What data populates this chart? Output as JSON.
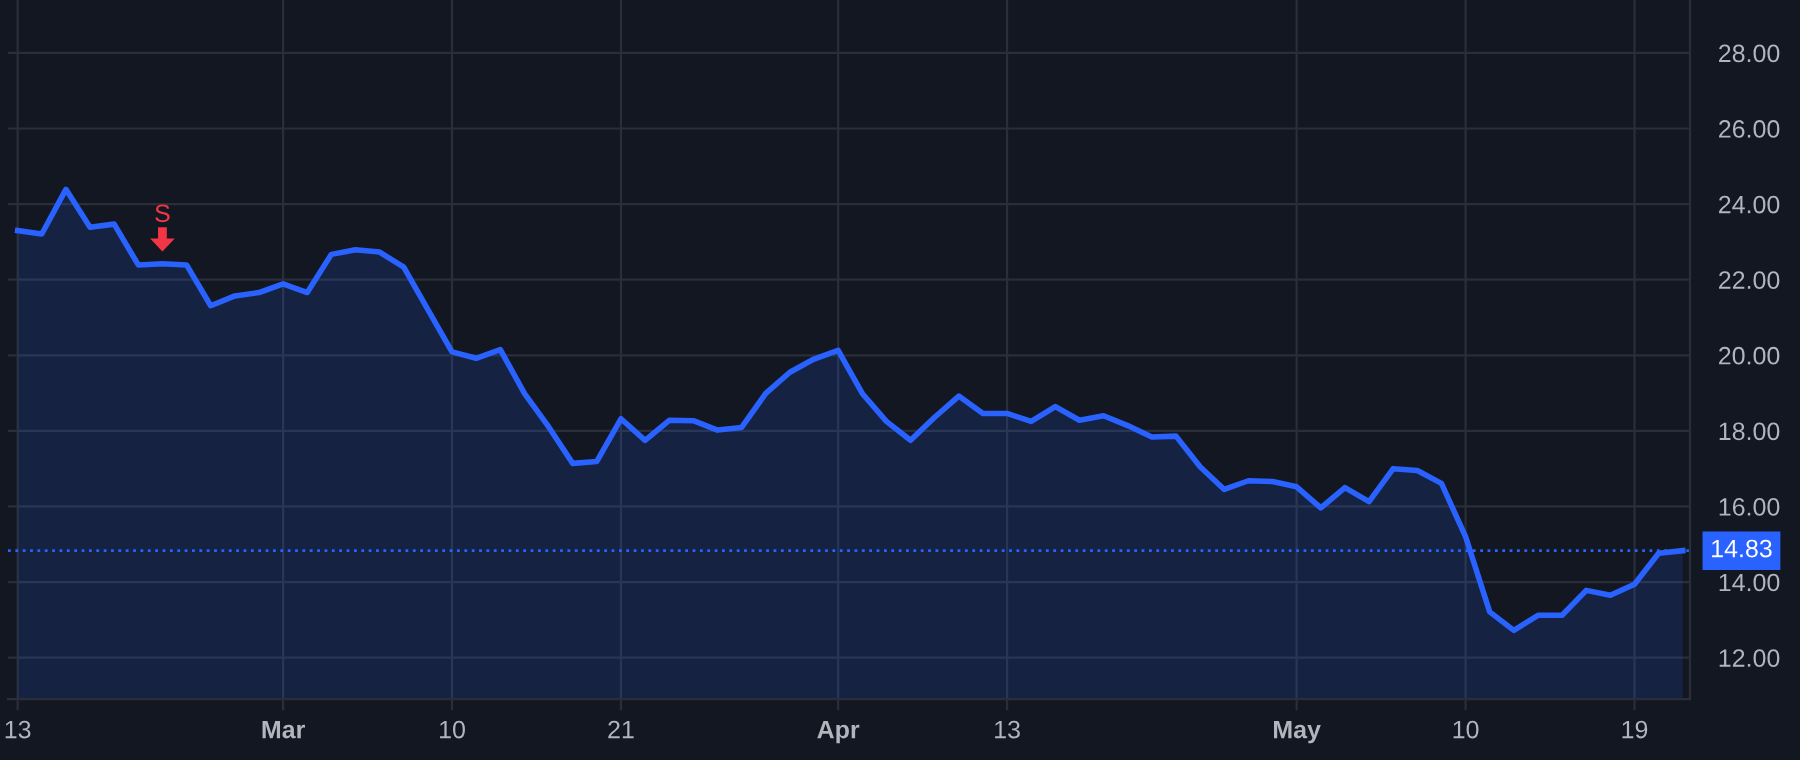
{
  "chart_data": {
    "type": "area",
    "categories": [
      "13",
      null,
      null,
      null,
      null,
      null,
      null,
      null,
      null,
      null,
      null,
      "Mar",
      null,
      null,
      null,
      null,
      null,
      null,
      "10",
      null,
      null,
      null,
      null,
      null,
      null,
      "21",
      null,
      null,
      null,
      null,
      null,
      null,
      null,
      null,
      "Apr",
      null,
      null,
      null,
      null,
      null,
      null,
      "13",
      null,
      null,
      null,
      null,
      null,
      null,
      null,
      null,
      null,
      null,
      null,
      "May",
      null,
      null,
      null,
      null,
      null,
      null,
      "10",
      null,
      null,
      null,
      null,
      null,
      null,
      "19",
      null,
      null
    ],
    "series": [
      {
        "color": "#2962ff",
        "values": [
          23.3,
          23.21,
          24.39,
          23.39,
          23.47,
          22.39,
          22.42,
          22.39,
          21.31,
          21.57,
          21.66,
          21.89,
          21.66,
          22.67,
          22.79,
          22.73,
          22.33,
          21.21,
          20.09,
          19.92,
          20.15,
          18.99,
          18.11,
          17.14,
          17.19,
          18.32,
          17.75,
          18.28,
          18.27,
          18.02,
          18.09,
          18.99,
          19.55,
          19.9,
          20.13,
          18.99,
          18.25,
          17.75,
          18.36,
          18.92,
          18.46,
          18.46,
          18.25,
          18.64,
          18.28,
          18.4,
          18.14,
          17.84,
          17.86,
          17.05,
          16.45,
          16.68,
          16.66,
          16.52,
          15.96,
          16.5,
          16.13,
          17.0,
          16.95,
          16.61,
          15.2,
          13.21,
          12.72,
          13.12,
          13.12,
          13.78,
          13.65,
          13.94,
          14.76,
          14.83
        ]
      }
    ],
    "ylim": [
      10.9,
      29.4
    ],
    "yticks": [
      {
        "value": 12,
        "label": "12.00"
      },
      {
        "value": 14,
        "label": "14.00"
      },
      {
        "value": 16,
        "label": "16.00"
      },
      {
        "value": 18,
        "label": "18.00"
      },
      {
        "value": 20,
        "label": "20.00"
      },
      {
        "value": 22,
        "label": "22.00"
      },
      {
        "value": 24,
        "label": "24.00"
      },
      {
        "value": 26,
        "label": "26.00"
      },
      {
        "value": 28,
        "label": "28.00"
      }
    ],
    "ref_lines": [
      {
        "axis": "y",
        "value": 14.83,
        "label": "14.83",
        "color": "#2962ff",
        "line_style": "dotted"
      }
    ],
    "annotations": [
      "S"
    ],
    "grid": true,
    "legend": false,
    "marker": "none",
    "line_style": "solid"
  }
}
